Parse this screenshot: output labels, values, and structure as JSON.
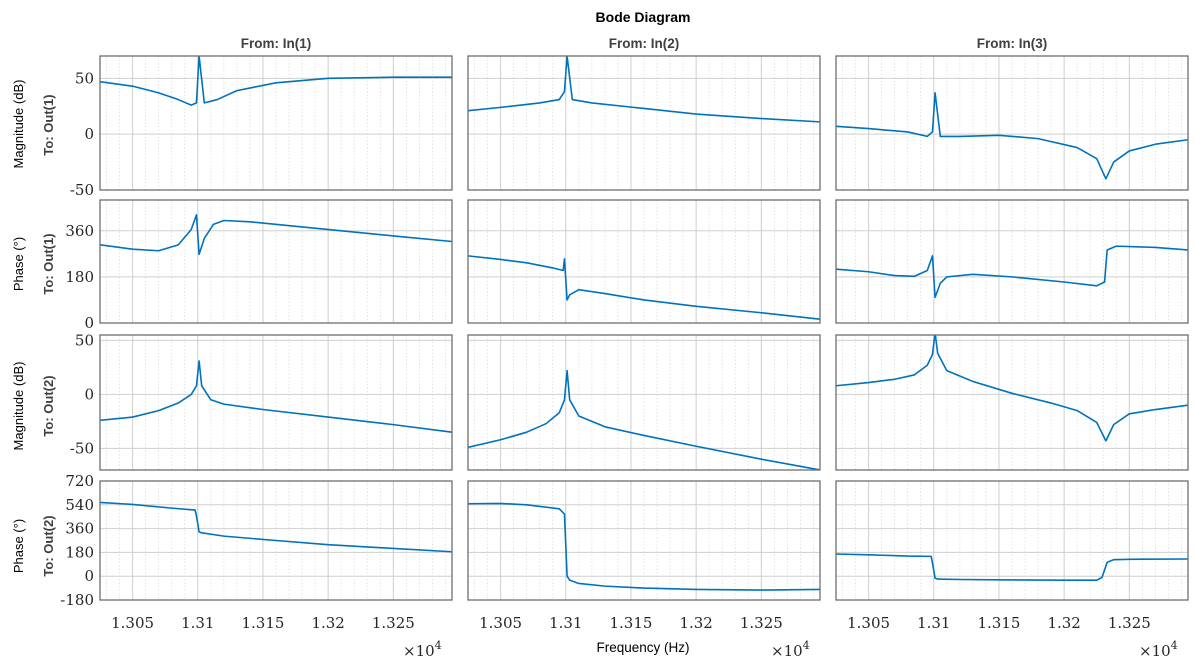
{
  "chart_data": {
    "type": "line",
    "title": "Bode Diagram",
    "xlabel": "Frequency  (Hz)",
    "x_exponent_label": "×10",
    "x_exponent_power": "4",
    "xlim": [
      1.3025,
      1.3295
    ],
    "x_ticks": [
      1.305,
      1.31,
      1.315,
      1.32,
      1.325
    ],
    "x_tick_labels": [
      "1.305",
      "1.31",
      "1.315",
      "1.32",
      "1.325"
    ],
    "grid": true,
    "line_color": "#0072bd",
    "column_titles": [
      "From: In(1)",
      "From: In(2)",
      "From: In(3)"
    ],
    "rows": [
      {
        "output": "To: Out(1)",
        "quantity": "Magnitude (dB)",
        "ylim": [
          -50,
          70
        ],
        "y_ticks": [
          -50,
          0,
          50
        ],
        "y_tick_labels": [
          "-50",
          "0",
          "50"
        ]
      },
      {
        "output": "To: Out(1)",
        "quantity": "Phase (°)",
        "ylim": [
          0,
          480
        ],
        "y_ticks": [
          0,
          180,
          360
        ],
        "y_tick_labels": [
          "0",
          "180",
          "360"
        ]
      },
      {
        "output": "To: Out(2)",
        "quantity": "Magnitude (dB)",
        "ylim": [
          -70,
          55
        ],
        "y_ticks": [
          -50,
          0,
          50
        ],
        "y_tick_labels": [
          "-50",
          "0",
          "50"
        ]
      },
      {
        "output": "To: Out(2)",
        "quantity": "Phase (°)",
        "ylim": [
          -180,
          720
        ],
        "y_ticks": [
          -180,
          0,
          180,
          360,
          540,
          720
        ],
        "y_tick_labels": [
          "-180",
          "0",
          "180",
          "360",
          "540",
          "720"
        ]
      }
    ],
    "series": [
      {
        "row": 0,
        "col": 0,
        "x": [
          1.3025,
          1.305,
          1.307,
          1.3085,
          1.3095,
          1.3099,
          1.3101,
          1.3105,
          1.3115,
          1.313,
          1.316,
          1.32,
          1.325,
          1.3295
        ],
        "y": [
          47,
          43,
          37,
          31,
          26,
          28,
          70,
          28,
          31,
          39,
          46,
          50,
          51,
          51
        ]
      },
      {
        "row": 0,
        "col": 1,
        "x": [
          1.3025,
          1.305,
          1.308,
          1.3095,
          1.3099,
          1.3101,
          1.3105,
          1.312,
          1.316,
          1.32,
          1.325,
          1.3295
        ],
        "y": [
          21,
          24,
          28,
          31,
          38,
          70,
          31,
          28,
          23,
          18,
          14,
          11
        ]
      },
      {
        "row": 0,
        "col": 2,
        "x": [
          1.3025,
          1.305,
          1.308,
          1.3095,
          1.3099,
          1.3101,
          1.3105,
          1.312,
          1.315,
          1.318,
          1.321,
          1.3225,
          1.3232,
          1.3238,
          1.325,
          1.327,
          1.3295
        ],
        "y": [
          7,
          5,
          2,
          -2,
          2,
          37,
          -2,
          -2,
          -1,
          -4,
          -12,
          -22,
          -40,
          -25,
          -15,
          -9,
          -5
        ]
      },
      {
        "row": 1,
        "col": 0,
        "x": [
          1.3025,
          1.305,
          1.307,
          1.3085,
          1.3095,
          1.3099,
          1.3101,
          1.3105,
          1.3112,
          1.312,
          1.314,
          1.318,
          1.322,
          1.326,
          1.3295
        ],
        "y": [
          305,
          288,
          282,
          305,
          365,
          422,
          268,
          330,
          385,
          400,
          395,
          375,
          355,
          335,
          318
        ]
      },
      {
        "row": 1,
        "col": 1,
        "x": [
          1.3025,
          1.305,
          1.307,
          1.309,
          1.3098,
          1.3099,
          1.3101,
          1.3103,
          1.311,
          1.313,
          1.316,
          1.32,
          1.325,
          1.3295
        ],
        "y": [
          262,
          248,
          235,
          215,
          205,
          250,
          90,
          110,
          130,
          115,
          90,
          65,
          40,
          15
        ]
      },
      {
        "row": 1,
        "col": 2,
        "x": [
          1.3025,
          1.305,
          1.307,
          1.3085,
          1.3095,
          1.3099,
          1.3101,
          1.3105,
          1.311,
          1.313,
          1.316,
          1.32,
          1.3225,
          1.3231,
          1.3233,
          1.324,
          1.327,
          1.3295
        ],
        "y": [
          210,
          200,
          185,
          182,
          205,
          262,
          100,
          155,
          180,
          190,
          180,
          160,
          145,
          160,
          285,
          300,
          295,
          285
        ]
      },
      {
        "row": 2,
        "col": 0,
        "x": [
          1.3025,
          1.305,
          1.307,
          1.3085,
          1.3095,
          1.3099,
          1.3101,
          1.3103,
          1.311,
          1.312,
          1.315,
          1.32,
          1.325,
          1.3295
        ],
        "y": [
          -24,
          -21,
          -15,
          -8,
          0,
          8,
          31,
          8,
          -5,
          -9,
          -14,
          -21,
          -28,
          -35
        ]
      },
      {
        "row": 2,
        "col": 1,
        "x": [
          1.3025,
          1.305,
          1.307,
          1.3085,
          1.3095,
          1.3099,
          1.3101,
          1.3103,
          1.311,
          1.313,
          1.316,
          1.32,
          1.325,
          1.3295
        ],
        "y": [
          -49,
          -42,
          -35,
          -27,
          -17,
          -5,
          22,
          -5,
          -20,
          -30,
          -38,
          -48,
          -60,
          -70
        ]
      },
      {
        "row": 2,
        "col": 2,
        "x": [
          1.3025,
          1.305,
          1.307,
          1.3085,
          1.3095,
          1.3099,
          1.3101,
          1.3103,
          1.311,
          1.313,
          1.316,
          1.319,
          1.321,
          1.3225,
          1.3232,
          1.3238,
          1.325,
          1.327,
          1.3295
        ],
        "y": [
          8,
          11,
          14,
          18,
          27,
          37,
          57,
          38,
          22,
          12,
          1,
          -8,
          -15,
          -26,
          -43,
          -28,
          -18,
          -14,
          -10
        ]
      },
      {
        "row": 3,
        "col": 0,
        "x": [
          1.3025,
          1.305,
          1.308,
          1.3098,
          1.3099,
          1.3101,
          1.3103,
          1.312,
          1.316,
          1.32,
          1.325,
          1.3295
        ],
        "y": [
          558,
          543,
          515,
          500,
          455,
          335,
          328,
          303,
          270,
          238,
          210,
          185
        ]
      },
      {
        "row": 3,
        "col": 1,
        "x": [
          1.3025,
          1.305,
          1.307,
          1.3095,
          1.3099,
          1.3101,
          1.3103,
          1.311,
          1.313,
          1.316,
          1.32,
          1.325,
          1.3295
        ],
        "y": [
          548,
          550,
          540,
          510,
          470,
          0,
          -30,
          -55,
          -75,
          -90,
          -100,
          -105,
          -100
        ]
      },
      {
        "row": 3,
        "col": 2,
        "x": [
          1.3025,
          1.305,
          1.308,
          1.3098,
          1.3099,
          1.3101,
          1.3103,
          1.312,
          1.316,
          1.32,
          1.3225,
          1.3229,
          1.3233,
          1.3238,
          1.325,
          1.3295
        ],
        "y": [
          168,
          162,
          152,
          150,
          100,
          -15,
          -22,
          -25,
          -28,
          -30,
          -30,
          -10,
          105,
          125,
          128,
          130
        ]
      }
    ]
  }
}
